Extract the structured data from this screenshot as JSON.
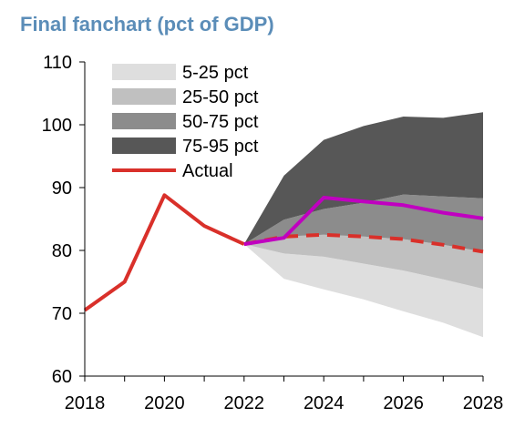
{
  "chart_data": {
    "type": "area",
    "title": "Final fanchart (pct of GDP)",
    "xlabel": "",
    "ylabel": "",
    "xlim": [
      2018,
      2028
    ],
    "ylim": [
      60,
      110
    ],
    "x_ticks": [
      "2018",
      "2020",
      "2022",
      "2024",
      "2026",
      "2028"
    ],
    "y_ticks": [
      "60",
      "70",
      "80",
      "90",
      "100",
      "110"
    ],
    "grid": false,
    "legend_position": "top-left",
    "bands": {
      "x": [
        2022,
        2023,
        2024,
        2025,
        2026,
        2027,
        2028
      ],
      "p5": [
        81.0,
        75.5,
        73.8,
        72.2,
        70.3,
        68.5,
        66.2
      ],
      "p25": [
        81.0,
        79.5,
        79.0,
        77.9,
        76.8,
        75.4,
        73.9
      ],
      "p50": [
        81.0,
        82.2,
        82.5,
        82.2,
        81.8,
        80.9,
        79.8
      ],
      "p75": [
        81.0,
        84.9,
        86.6,
        87.6,
        88.9,
        88.6,
        88.3
      ],
      "p95": [
        81.0,
        91.9,
        97.6,
        99.8,
        101.3,
        101.1,
        102.0
      ]
    },
    "series": [
      {
        "name": "Actual",
        "x": [
          2018,
          2019,
          2020,
          2021,
          2022
        ],
        "values": [
          70.5,
          75.0,
          88.8,
          83.9,
          81.0
        ],
        "color": "#d9302a"
      },
      {
        "x": [
          2022,
          2023,
          2024,
          2025,
          2026,
          2027,
          2028
        ],
        "values": [
          81.0,
          82.2,
          82.5,
          82.2,
          81.8,
          80.9,
          79.8
        ],
        "color": "#d9302a",
        "style": "dashed"
      },
      {
        "x": [
          2022,
          2023,
          2024,
          2025,
          2026,
          2027,
          2028
        ],
        "values": [
          81.0,
          82.0,
          88.4,
          87.8,
          87.2,
          86.0,
          85.1
        ],
        "color": "#c000c0"
      }
    ],
    "legend": [
      {
        "label": "5-25 pct",
        "color": "#dedede"
      },
      {
        "label": "25-50 pct",
        "color": "#c0c0c0"
      },
      {
        "label": "50-75 pct",
        "color": "#8c8c8c"
      },
      {
        "label": "75-95 pct",
        "color": "#575757"
      },
      {
        "label": "Actual",
        "color": "#d9302a"
      }
    ]
  }
}
